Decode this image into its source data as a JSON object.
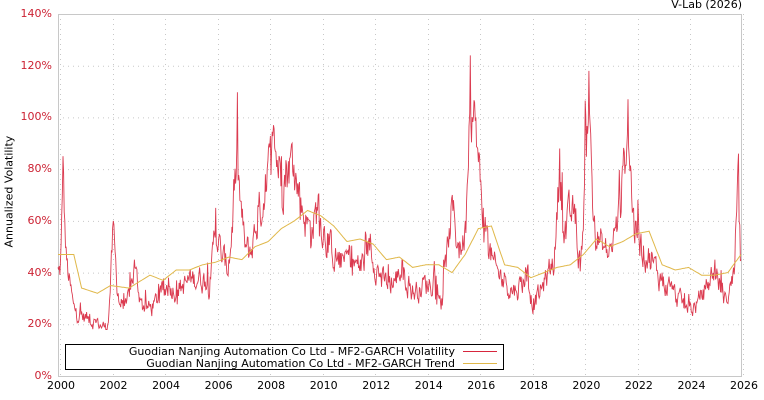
{
  "header": {
    "credit": "V-Lab (2026)"
  },
  "axes": {
    "y_label": "Annualized Volatility",
    "y_ticks": [
      "0%",
      "20%",
      "40%",
      "60%",
      "80%",
      "100%",
      "120%",
      "140%"
    ],
    "x_ticks": [
      "2000",
      "2002",
      "2004",
      "2006",
      "2008",
      "2010",
      "2012",
      "2014",
      "2016",
      "2018",
      "2020",
      "2022",
      "2024",
      "2026"
    ]
  },
  "legend": {
    "items": [
      {
        "label": "Guodian Nanjing Automation Co Ltd - MF2-GARCH Volatility",
        "color": "#d7263d"
      },
      {
        "label": "Guodian Nanjing Automation Co Ltd - MF2-GARCH Trend",
        "color": "#e0b84a"
      }
    ]
  },
  "chart_data": {
    "type": "line",
    "title": "",
    "xlabel": "",
    "ylabel": "Annualized Volatility",
    "xlim": [
      2000,
      2026
    ],
    "ylim": [
      0,
      140
    ],
    "y_unit": "%",
    "grid": true,
    "legend_position": "bottom-left inside plot",
    "series": [
      {
        "name": "Guodian Nanjing Automation Co Ltd - MF2-GARCH Volatility",
        "color": "#d7263d",
        "x": [
          2000.0,
          2000.1,
          2000.2,
          2000.3,
          2000.45,
          2000.6,
          2000.9,
          2001.2,
          2001.5,
          2001.9,
          2002.1,
          2002.3,
          2002.6,
          2002.9,
          2003.2,
          2003.6,
          2003.9,
          2004.2,
          2004.6,
          2005.0,
          2005.4,
          2005.8,
          2006.0,
          2006.2,
          2006.5,
          2006.8,
          2007.1,
          2007.3,
          2007.6,
          2007.9,
          2008.2,
          2008.5,
          2008.9,
          2009.2,
          2009.6,
          2009.9,
          2010.3,
          2010.7,
          2011.1,
          2011.5,
          2011.9,
          2012.3,
          2012.7,
          2013.1,
          2013.5,
          2013.9,
          2014.3,
          2014.6,
          2015.0,
          2015.3,
          2015.5,
          2015.7,
          2015.9,
          2016.2,
          2016.6,
          2017.0,
          2017.4,
          2017.8,
          2018.1,
          2018.5,
          2018.9,
          2019.1,
          2019.3,
          2019.6,
          2019.9,
          2020.2,
          2020.4,
          2020.7,
          2021.0,
          2021.4,
          2021.7,
          2021.9,
          2022.2,
          2022.6,
          2023.0,
          2023.4,
          2023.8,
          2024.2,
          2024.6,
          2025.0,
          2025.4,
          2025.7,
          2025.9,
          2026.0
        ],
        "y": [
          42,
          45,
          85,
          50,
          38,
          28,
          25,
          24,
          22,
          20,
          60,
          32,
          28,
          45,
          30,
          28,
          35,
          38,
          36,
          40,
          42,
          38,
          65,
          50,
          45,
          88,
          55,
          50,
          66,
          78,
          97,
          85,
          90,
          75,
          60,
          70,
          55,
          48,
          50,
          45,
          55,
          40,
          38,
          45,
          35,
          38,
          40,
          30,
          70,
          52,
          60,
          124,
          100,
          65,
          45,
          40,
          35,
          42,
          30,
          38,
          50,
          88,
          60,
          70,
          45,
          118,
          60,
          55,
          50,
          70,
          107,
          65,
          55,
          48,
          40,
          35,
          30,
          28,
          35,
          45,
          32,
          40,
          86,
          45
        ]
      },
      {
        "name": "Guodian Nanjing Automation Co Ltd - MF2-GARCH Trend",
        "color": "#e0b84a",
        "x": [
          2000.0,
          2000.6,
          2000.9,
          2001.5,
          2002.0,
          2002.7,
          2003.5,
          2004.0,
          2004.5,
          2005.0,
          2005.5,
          2006.0,
          2006.5,
          2007.0,
          2007.5,
          2008.0,
          2008.5,
          2009.0,
          2009.5,
          2010.0,
          2010.5,
          2011.0,
          2011.5,
          2012.0,
          2012.5,
          2013.0,
          2013.5,
          2014.0,
          2014.5,
          2015.0,
          2015.5,
          2016.0,
          2016.5,
          2017.0,
          2017.5,
          2018.0,
          2018.5,
          2019.0,
          2019.5,
          2020.0,
          2020.5,
          2021.0,
          2021.5,
          2022.0,
          2022.5,
          2023.0,
          2023.5,
          2024.0,
          2024.5,
          2025.0,
          2025.5,
          2026.0
        ],
        "y": [
          47,
          47,
          34,
          32,
          35,
          34,
          39,
          37,
          41,
          41,
          43,
          44,
          46,
          45,
          50,
          52,
          57,
          60,
          64,
          62,
          58,
          52,
          53,
          51,
          45,
          46,
          42,
          43,
          43,
          40,
          47,
          57,
          58,
          43,
          42,
          38,
          40,
          42,
          43,
          47,
          53,
          50,
          52,
          55,
          56,
          43,
          41,
          42,
          39,
          39,
          40,
          47
        ]
      }
    ]
  }
}
